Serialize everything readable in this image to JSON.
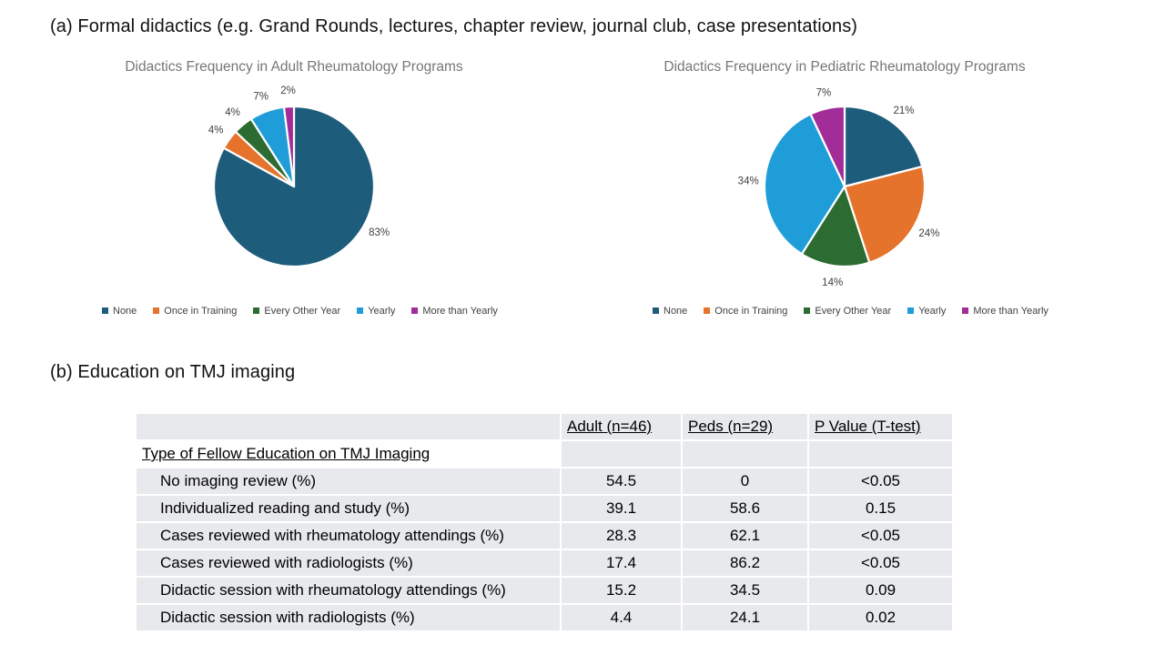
{
  "section_a": {
    "title": "(a) Formal didactics (e.g. Grand Rounds, lectures, chapter review, journal club, case presentations)"
  },
  "section_b": {
    "title": "(b) Education on TMJ imaging"
  },
  "palette": {
    "slice_colors": [
      "#1E5C7C",
      "#E5732C",
      "#2C6B31",
      "#1E9DD9",
      "#A22C98"
    ],
    "chart_title_color": "#767676",
    "data_label_color": "#404040",
    "legend_text_color": "#404040",
    "table_fill": "#E7E9ED"
  },
  "legend": {
    "items": [
      "None",
      "Once in Training",
      "Every Other Year",
      "Yearly",
      "More than Yearly"
    ]
  },
  "chart_data": [
    {
      "type": "pie",
      "title": "Didactics Frequency in Adult Rheumatology Programs",
      "categories": [
        "None",
        "Once in Training",
        "Every Other Year",
        "Yearly",
        "More than Yearly"
      ],
      "values": [
        83,
        4,
        4,
        7,
        2
      ],
      "data_labels": [
        "83%",
        "4%",
        "4%",
        "7%",
        "2%"
      ],
      "start_angle_deg": 0,
      "direction": "clockwise",
      "legend_position": "bottom",
      "label_angles_deg": [
        118,
        306,
        320.5,
        340,
        356.5
      ]
    },
    {
      "type": "pie",
      "title": "Didactics Frequency in Pediatric Rheumatology Programs",
      "categories": [
        "None",
        "Once in Training",
        "Every Other Year",
        "Yearly",
        "More than Yearly"
      ],
      "values": [
        21,
        24,
        14,
        34,
        7
      ],
      "data_labels": [
        "21%",
        "24%",
        "14%",
        "34%",
        "7%"
      ],
      "start_angle_deg": 0,
      "direction": "clockwise",
      "legend_position": "bottom",
      "label_angles_deg": null
    }
  ],
  "table": {
    "headers": [
      "",
      "Adult (n=46)",
      "Peds (n=29)",
      "P Value (T-test)"
    ],
    "section_label": "Type of Fellow Education on TMJ Imaging",
    "rows": [
      {
        "label": "No imaging review (%)",
        "adult": "54.5",
        "peds": "0",
        "p_value": "<0.05"
      },
      {
        "label": "Individualized reading and study (%)",
        "adult": "39.1",
        "peds": "58.6",
        "p_value": "0.15"
      },
      {
        "label": "Cases reviewed with rheumatology attendings (%)",
        "adult": "28.3",
        "peds": "62.1",
        "p_value": "<0.05"
      },
      {
        "label": "Cases reviewed with radiologists (%)",
        "adult": "17.4",
        "peds": "86.2",
        "p_value": "<0.05"
      },
      {
        "label": "Didactic session with rheumatology attendings (%)",
        "adult": "15.2",
        "peds": "34.5",
        "p_value": "0.09"
      },
      {
        "label": "Didactic session with radiologists (%)",
        "adult": "4.4",
        "peds": "24.1",
        "p_value": "0.02"
      }
    ]
  }
}
